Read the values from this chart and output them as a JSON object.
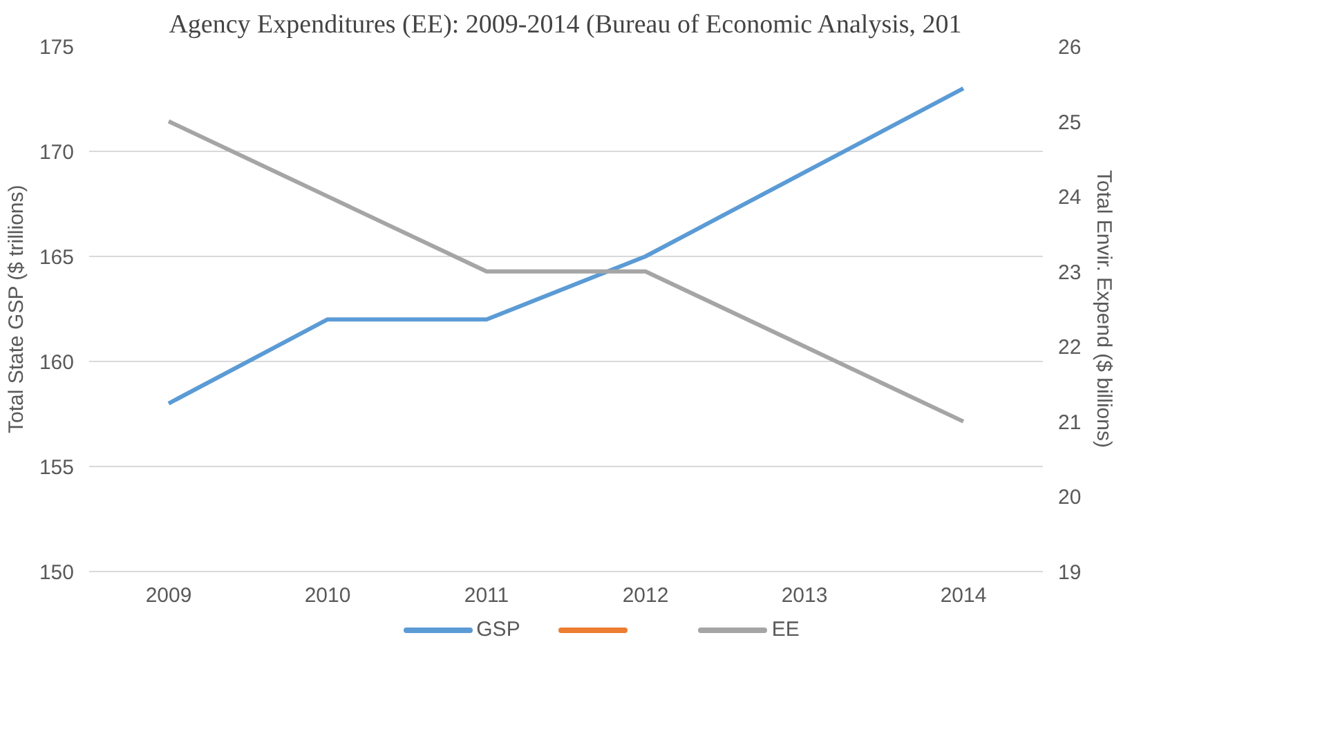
{
  "chart_data": {
    "type": "line",
    "title": "Agency Expenditures (EE): 2009-2014 (Bureau of Economic Analysis, 201",
    "categories": [
      "2009",
      "2010",
      "2011",
      "2012",
      "2013",
      "2014"
    ],
    "ylabel": "Total State GSP ($ trillions)",
    "y2label": "Total Envir. Expend ($ billions)",
    "ylim": [
      150,
      175
    ],
    "yticks": [
      150,
      155,
      160,
      165,
      170,
      175
    ],
    "y2lim": [
      19,
      26
    ],
    "y2ticks": [
      19,
      20,
      21,
      22,
      23,
      24,
      25,
      26
    ],
    "grid": "y",
    "legend": "bottom",
    "marker": "none",
    "line_style": "solid",
    "series": [
      {
        "name": "GSP",
        "color": "#5b9bd5",
        "values": [
          158,
          162,
          162,
          165,
          169,
          173
        ]
      },
      {
        "color": "#ed7d31",
        "values": [
          null,
          null,
          null,
          null,
          null,
          null
        ]
      },
      {
        "name": "EE",
        "color": "#a5a5a5",
        "values": [
          25,
          24,
          23,
          23,
          22,
          21
        ],
        "axis": "y2"
      }
    ]
  }
}
